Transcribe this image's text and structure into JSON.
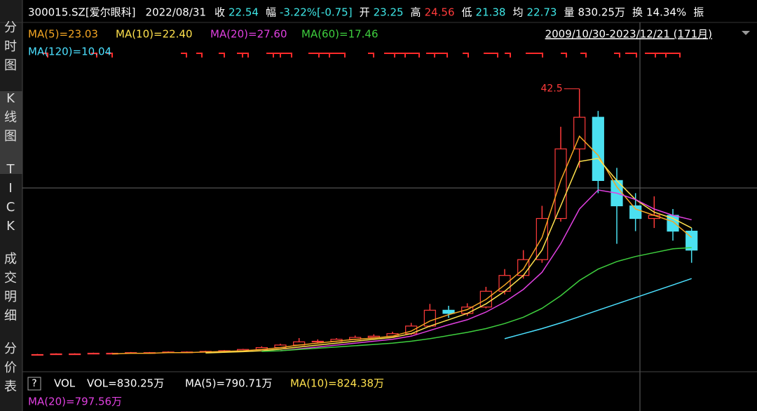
{
  "header": {
    "symbol": "300015.SZ[爱尔眼科]",
    "date": "2022/08/31",
    "stats": [
      {
        "label": "收",
        "value": "22.54",
        "color": "#3ee6e6"
      },
      {
        "label": "幅",
        "value": "-3.22%[-0.75]",
        "color": "#3ee6e6"
      },
      {
        "label": "开",
        "value": "23.25",
        "color": "#3ee6e6"
      },
      {
        "label": "高",
        "value": "24.56",
        "color": "#ff3b3b"
      },
      {
        "label": "低",
        "value": "21.38",
        "color": "#3ee6e6"
      },
      {
        "label": "均",
        "value": "22.73",
        "color": "#3ee6e6"
      },
      {
        "label": "量",
        "value": "830.25万",
        "color": "#ffffff"
      },
      {
        "label": "换",
        "value": "14.34%",
        "color": "#ffffff"
      }
    ],
    "cut": "振"
  },
  "sidebar": [
    [
      "分",
      "时",
      "图"
    ],
    [
      "K",
      "线",
      "图"
    ],
    [
      "T",
      "I",
      "C",
      "K"
    ],
    [
      "成",
      "交",
      "明",
      "细"
    ],
    [
      "分",
      "价",
      "表"
    ]
  ],
  "range": "2009/10/30-2023/12/21 (171月)",
  "volume_panel": {
    "help": "?",
    "title": "VOL",
    "items": [
      {
        "text": "VOL=830.25万",
        "color": "#ffffff"
      },
      {
        "text": "MA(5)=790.71万",
        "color": "#ffffff"
      },
      {
        "text": "MA(10)=824.38万",
        "color": "#ffe14d"
      },
      {
        "text": "MA(20)=797.56万",
        "color": "#e040e0"
      }
    ]
  },
  "chart_data": {
    "type": "candlestick",
    "ylim": [
      0,
      46
    ],
    "up_color": "#ff3b3b",
    "down_color": "#4be0f0",
    "open": [
      0.4,
      0.5,
      0.6,
      0.6,
      0.7,
      0.7,
      0.8,
      0.8,
      0.9,
      0.9,
      1.0,
      1.1,
      1.3,
      1.6,
      2.0,
      2.5,
      2.6,
      2.9,
      3.2,
      3.4,
      3.8,
      5.0,
      7.5,
      7.0,
      8.0,
      10.5,
      13.0,
      15.5,
      22.0,
      33.0,
      38.0,
      28.0,
      24.0,
      22.0,
      22.5,
      20.0
    ],
    "high": [
      0.6,
      0.7,
      0.7,
      0.8,
      0.8,
      0.9,
      0.9,
      1.0,
      1.0,
      1.1,
      1.2,
      1.4,
      1.8,
      2.2,
      3.1,
      2.9,
      3.1,
      3.5,
      3.7,
      4.1,
      5.5,
      8.5,
      8.2,
      8.6,
      11.2,
      14.0,
      17.0,
      24.0,
      36.5,
      42.5,
      39.0,
      30.0,
      26.0,
      25.5,
      23.5,
      20.5
    ],
    "low": [
      0.35,
      0.45,
      0.5,
      0.55,
      0.6,
      0.65,
      0.7,
      0.75,
      0.8,
      0.85,
      0.95,
      1.05,
      1.25,
      1.55,
      1.9,
      2.3,
      2.5,
      2.8,
      3.1,
      3.3,
      3.6,
      4.8,
      6.3,
      6.6,
      7.8,
      10.0,
      12.5,
      15.0,
      21.5,
      30.0,
      26.0,
      18.0,
      20.0,
      20.5,
      18.5,
      15.0
    ],
    "close": [
      0.5,
      0.6,
      0.6,
      0.7,
      0.7,
      0.8,
      0.8,
      0.9,
      0.9,
      1.0,
      1.1,
      1.3,
      1.6,
      2.0,
      2.5,
      2.6,
      2.9,
      3.2,
      3.4,
      3.8,
      5.0,
      7.5,
      7.0,
      8.0,
      10.5,
      13.0,
      15.5,
      22.0,
      33.0,
      38.0,
      28.0,
      24.0,
      22.0,
      22.5,
      20.0,
      17.0
    ],
    "annotation": {
      "text": "42.5",
      "index": 29,
      "value": 42.5
    },
    "series": [
      {
        "name": "MA(5)=23.03",
        "color": "#f5a623",
        "values": [
          null,
          null,
          null,
          null,
          0.6,
          0.7,
          0.7,
          0.8,
          0.8,
          0.9,
          1.0,
          1.1,
          1.3,
          1.6,
          2.0,
          2.3,
          2.6,
          2.9,
          3.1,
          3.4,
          4.2,
          5.8,
          6.8,
          7.6,
          9.2,
          11.5,
          14.0,
          19.0,
          28.0,
          35.0,
          32.0,
          27.0,
          23.5,
          22.5,
          21.5,
          19.0
        ]
      },
      {
        "name": "MA(10)=22.40",
        "color": "#ffe14d",
        "values": [
          null,
          null,
          null,
          null,
          null,
          null,
          null,
          null,
          null,
          0.75,
          0.85,
          0.95,
          1.1,
          1.35,
          1.7,
          2.0,
          2.3,
          2.6,
          2.9,
          3.2,
          3.8,
          5.0,
          6.0,
          7.0,
          8.5,
          10.5,
          13.0,
          17.0,
          24.0,
          31.0,
          31.5,
          28.0,
          25.0,
          23.0,
          22.0,
          20.5
        ]
      },
      {
        "name": "MA(20)=27.60",
        "color": "#e040e0",
        "values": [
          null,
          null,
          null,
          null,
          null,
          null,
          null,
          null,
          null,
          null,
          null,
          null,
          null,
          1.1,
          1.4,
          1.7,
          2.0,
          2.3,
          2.6,
          2.9,
          3.4,
          4.3,
          5.2,
          6.0,
          7.2,
          8.8,
          10.8,
          13.5,
          18.0,
          23.5,
          26.5,
          26.0,
          25.0,
          23.5,
          22.5,
          21.8
        ]
      },
      {
        "name": "MA(60)=17.46",
        "color": "#3ecf3e",
        "values": [
          null,
          null,
          null,
          null,
          null,
          null,
          null,
          null,
          null,
          null,
          null,
          null,
          1.0,
          1.1,
          1.3,
          1.5,
          1.7,
          1.9,
          2.1,
          2.3,
          2.6,
          3.0,
          3.5,
          4.0,
          4.6,
          5.4,
          6.4,
          7.8,
          9.8,
          12.2,
          14.0,
          15.2,
          16.0,
          16.6,
          17.2,
          17.4
        ]
      },
      {
        "name": "MA(120)=10.04",
        "color": "#4be0ff",
        "values": [
          null,
          null,
          null,
          null,
          null,
          null,
          null,
          null,
          null,
          null,
          null,
          null,
          null,
          null,
          null,
          null,
          null,
          null,
          null,
          null,
          null,
          null,
          null,
          null,
          null,
          3.0,
          3.8,
          4.6,
          5.5,
          6.5,
          7.5,
          8.5,
          9.5,
          10.5,
          11.5,
          12.5
        ]
      }
    ]
  }
}
